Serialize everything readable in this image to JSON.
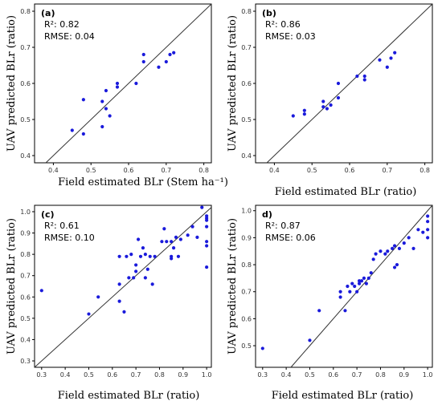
{
  "chart_data": [
    {
      "type": "scatter",
      "panel_label": "(a)",
      "r2_label": "R²: 0.82",
      "rmse_label": "RMSE: 0.04",
      "xlabel": "Field estimated BLr (Stem ha⁻¹)",
      "ylabel": "UAV predicted BLr (ratio)",
      "xlim": [
        0.35,
        0.82
      ],
      "ylim": [
        0.38,
        0.82
      ],
      "xticks": [
        "0.4",
        "0.5",
        "0.6",
        "0.7",
        "0.8"
      ],
      "yticks": [
        "0.4",
        "0.5",
        "0.6",
        "0.7",
        "0.8"
      ],
      "identity_line": true,
      "points": [
        [
          0.45,
          0.47
        ],
        [
          0.48,
          0.46
        ],
        [
          0.48,
          0.555
        ],
        [
          0.53,
          0.48
        ],
        [
          0.53,
          0.55
        ],
        [
          0.54,
          0.53
        ],
        [
          0.54,
          0.58
        ],
        [
          0.55,
          0.51
        ],
        [
          0.57,
          0.59
        ],
        [
          0.57,
          0.6
        ],
        [
          0.62,
          0.6
        ],
        [
          0.64,
          0.66
        ],
        [
          0.64,
          0.68
        ],
        [
          0.68,
          0.645
        ],
        [
          0.7,
          0.66
        ],
        [
          0.71,
          0.68
        ],
        [
          0.72,
          0.685
        ]
      ]
    },
    {
      "type": "scatter",
      "panel_label": "(b)",
      "r2_label": "R²: 0.86",
      "rmse_label": "RMSE: 0.03",
      "xlabel": "Field estimated BLr (ratio)",
      "ylabel": "UAV predicted BLr (ratio)",
      "xlim": [
        0.35,
        0.82
      ],
      "ylim": [
        0.38,
        0.82
      ],
      "xticks": [
        "0.4",
        "0.5",
        "0.6",
        "0.7",
        "0.8"
      ],
      "yticks": [
        "0.4",
        "0.5",
        "0.6",
        "0.7",
        "0.8"
      ],
      "identity_line": true,
      "points": [
        [
          0.45,
          0.51
        ],
        [
          0.48,
          0.515
        ],
        [
          0.48,
          0.525
        ],
        [
          0.53,
          0.535
        ],
        [
          0.53,
          0.55
        ],
        [
          0.54,
          0.53
        ],
        [
          0.55,
          0.54
        ],
        [
          0.57,
          0.56
        ],
        [
          0.57,
          0.6
        ],
        [
          0.62,
          0.62
        ],
        [
          0.64,
          0.61
        ],
        [
          0.64,
          0.62
        ],
        [
          0.68,
          0.665
        ],
        [
          0.7,
          0.645
        ],
        [
          0.71,
          0.67
        ],
        [
          0.72,
          0.685
        ]
      ]
    },
    {
      "type": "scatter",
      "panel_label": "(c)",
      "r2_label": "R²: 0.61",
      "rmse_label": "RMSE: 0.10",
      "xlabel": "Field estimated BLr (ratio)",
      "ylabel": "UAV predicted BLr (ratio)",
      "xlim": [
        0.27,
        1.02
      ],
      "ylim": [
        0.27,
        1.03
      ],
      "xticks": [
        "0.3",
        "0.4",
        "0.5",
        "0.6",
        "0.7",
        "0.8",
        "0.9",
        "1.0"
      ],
      "yticks": [
        "0.3",
        "0.4",
        "0.5",
        "0.6",
        "0.7",
        "0.8",
        "0.9",
        "1.0"
      ],
      "identity_line": true,
      "points": [
        [
          0.3,
          0.63
        ],
        [
          0.5,
          0.52
        ],
        [
          0.54,
          0.6
        ],
        [
          0.63,
          0.58
        ],
        [
          0.63,
          0.66
        ],
        [
          0.63,
          0.79
        ],
        [
          0.65,
          0.53
        ],
        [
          0.66,
          0.79
        ],
        [
          0.67,
          0.69
        ],
        [
          0.68,
          0.8
        ],
        [
          0.69,
          0.69
        ],
        [
          0.7,
          0.75
        ],
        [
          0.7,
          0.72
        ],
        [
          0.71,
          0.87
        ],
        [
          0.72,
          0.79
        ],
        [
          0.73,
          0.83
        ],
        [
          0.74,
          0.69
        ],
        [
          0.74,
          0.8
        ],
        [
          0.75,
          0.73
        ],
        [
          0.76,
          0.79
        ],
        [
          0.77,
          0.66
        ],
        [
          0.78,
          0.79
        ],
        [
          0.81,
          0.86
        ],
        [
          0.82,
          0.92
        ],
        [
          0.83,
          0.86
        ],
        [
          0.85,
          0.78
        ],
        [
          0.85,
          0.79
        ],
        [
          0.85,
          0.86
        ],
        [
          0.86,
          0.83
        ],
        [
          0.87,
          0.88
        ],
        [
          0.88,
          0.79
        ],
        [
          0.89,
          0.87
        ],
        [
          0.92,
          0.89
        ],
        [
          0.94,
          0.93
        ],
        [
          0.96,
          0.88
        ],
        [
          0.98,
          1.02
        ],
        [
          1.0,
          0.74
        ],
        [
          1.0,
          0.84
        ],
        [
          1.0,
          0.86
        ],
        [
          1.0,
          0.93
        ],
        [
          1.0,
          0.96
        ],
        [
          1.0,
          0.97
        ],
        [
          1.0,
          0.98
        ]
      ]
    },
    {
      "type": "scatter",
      "panel_label": "d)",
      "r2_label": "R²: 0.87",
      "rmse_label": "RMSE: 0.06",
      "xlabel": "Field estimated BLr (ratio)",
      "ylabel": "UAV predicted BLr (ratio)",
      "xlim": [
        0.27,
        1.02
      ],
      "ylim": [
        0.42,
        1.02
      ],
      "xticks": [
        "0.3",
        "0.4",
        "0.5",
        "0.6",
        "0.7",
        "0.8",
        "0.9",
        "1.0"
      ],
      "yticks": [
        "0.5",
        "0.6",
        "0.7",
        "0.8",
        "0.9",
        "1.0"
      ],
      "identity_line": true,
      "points": [
        [
          0.3,
          0.49
        ],
        [
          0.5,
          0.52
        ],
        [
          0.54,
          0.63
        ],
        [
          0.63,
          0.68
        ],
        [
          0.63,
          0.7
        ],
        [
          0.65,
          0.63
        ],
        [
          0.66,
          0.72
        ],
        [
          0.67,
          0.7
        ],
        [
          0.68,
          0.73
        ],
        [
          0.69,
          0.72
        ],
        [
          0.7,
          0.7
        ],
        [
          0.71,
          0.73
        ],
        [
          0.71,
          0.74
        ],
        [
          0.72,
          0.74
        ],
        [
          0.73,
          0.75
        ],
        [
          0.74,
          0.73
        ],
        [
          0.75,
          0.75
        ],
        [
          0.76,
          0.77
        ],
        [
          0.77,
          0.82
        ],
        [
          0.78,
          0.84
        ],
        [
          0.8,
          0.85
        ],
        [
          0.82,
          0.84
        ],
        [
          0.83,
          0.85
        ],
        [
          0.85,
          0.86
        ],
        [
          0.86,
          0.87
        ],
        [
          0.86,
          0.79
        ],
        [
          0.87,
          0.8
        ],
        [
          0.88,
          0.86
        ],
        [
          0.9,
          0.88
        ],
        [
          0.92,
          0.9
        ],
        [
          0.94,
          0.86
        ],
        [
          0.96,
          0.93
        ],
        [
          0.98,
          0.92
        ],
        [
          1.0,
          0.9
        ],
        [
          1.0,
          0.93
        ],
        [
          1.0,
          0.96
        ],
        [
          1.0,
          0.98
        ]
      ]
    }
  ]
}
